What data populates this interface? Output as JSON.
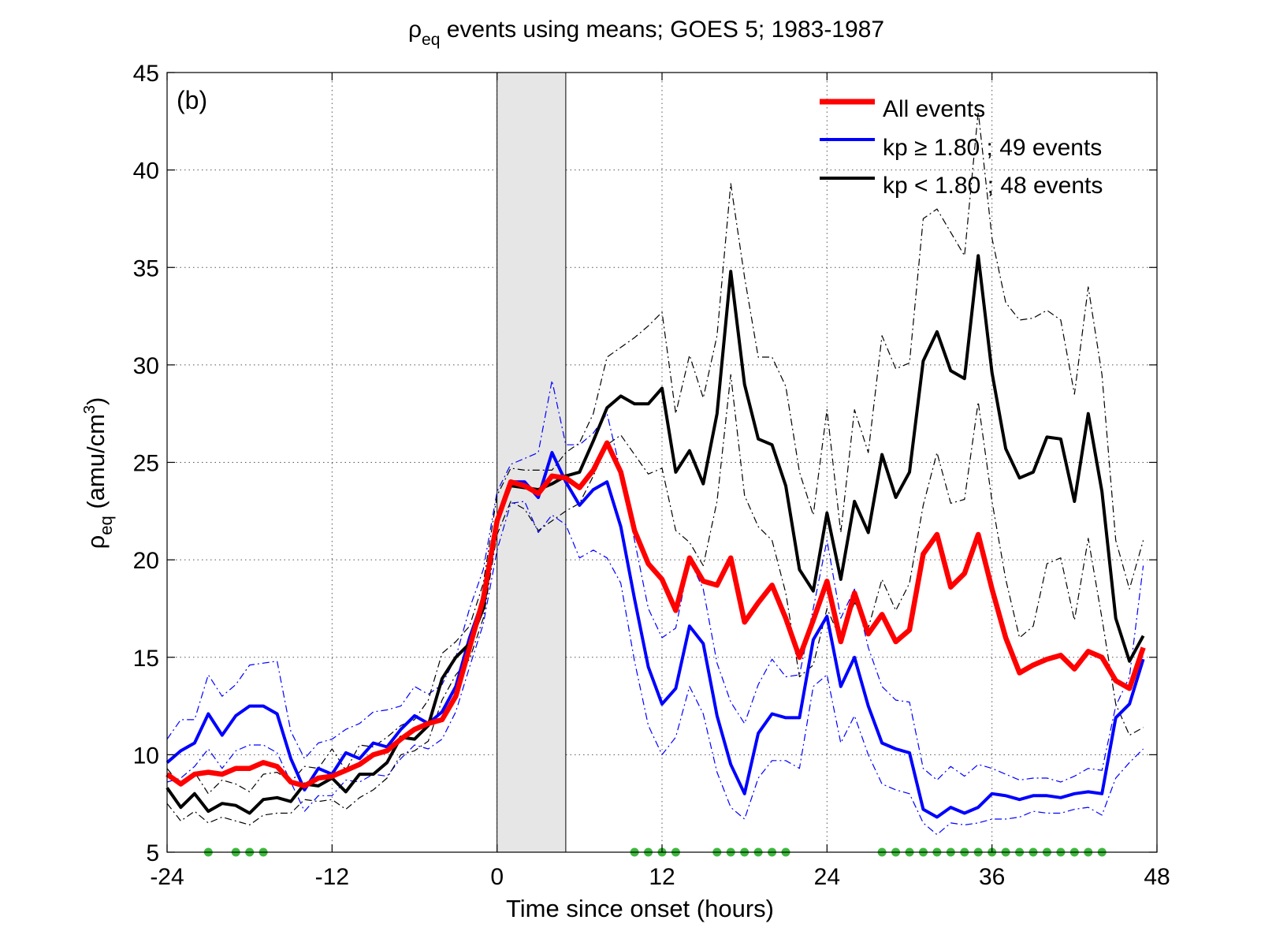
{
  "chart_data": {
    "type": "line",
    "title": "ρ",
    "title_sub": "eq",
    "title_rest": " events using means; GOES 5; 1983-1987",
    "panel_label": "(b)",
    "xlabel": "Time since onset (hours)",
    "ylabel_main": "ρ",
    "ylabel_sub": "eq",
    "ylabel_rest": " (amu/cm",
    "ylabel_sup": "3",
    "ylabel_close": ")",
    "xlim": [
      -24,
      48
    ],
    "ylim": [
      5,
      45
    ],
    "xticks": [
      -24,
      -12,
      0,
      12,
      24,
      36,
      48
    ],
    "yticks": [
      5,
      10,
      15,
      20,
      25,
      30,
      35,
      40,
      45
    ],
    "grid": true,
    "legend_position": "top-right",
    "shaded_region": [
      0,
      5
    ],
    "x": [
      -24,
      -23,
      -22,
      -21,
      -20,
      -19,
      -18,
      -17,
      -16,
      -15,
      -14,
      -13,
      -12,
      -11,
      -10,
      -9,
      -8,
      -7,
      -6,
      -5,
      -4,
      -3,
      -2,
      -1,
      0,
      1,
      2,
      3,
      4,
      5,
      6,
      7,
      8,
      9,
      10,
      11,
      12,
      13,
      14,
      15,
      16,
      17,
      18,
      19,
      20,
      21,
      22,
      23,
      24,
      25,
      26,
      27,
      28,
      29,
      30,
      31,
      32,
      33,
      34,
      35,
      36,
      37,
      38,
      39,
      40,
      41,
      42,
      43,
      44,
      45,
      46,
      47
    ],
    "series": [
      {
        "name": "All events",
        "color": "#ff0000",
        "values": [
          9.0,
          8.5,
          9.0,
          9.1,
          9.0,
          9.3,
          9.3,
          9.6,
          9.4,
          8.6,
          8.4,
          8.8,
          8.9,
          9.2,
          9.5,
          10.0,
          10.2,
          10.8,
          11.3,
          11.6,
          11.8,
          13.0,
          15.5,
          18.0,
          22.0,
          24.0,
          23.8,
          23.4,
          24.3,
          24.2,
          23.7,
          24.6,
          26.0,
          24.5,
          21.5,
          19.8,
          19.0,
          17.4,
          20.1,
          18.9,
          18.7,
          20.1,
          16.8,
          17.8,
          18.7,
          17.0,
          15.0,
          16.9,
          18.9,
          15.8,
          18.3,
          16.2,
          17.2,
          15.8,
          16.4,
          20.3,
          21.3,
          18.6,
          19.3,
          21.3,
          18.5,
          16.0,
          14.2,
          14.6,
          14.9,
          15.1,
          14.4,
          15.3,
          15.0,
          13.8,
          13.4,
          15.5
        ]
      },
      {
        "name": "kp ≥ 1.80 ; 49 events",
        "color": "#0000ff",
        "values": [
          9.6,
          10.2,
          10.6,
          12.1,
          11.0,
          12.0,
          12.5,
          12.5,
          12.1,
          9.8,
          8.2,
          9.3,
          9.0,
          10.1,
          9.8,
          10.6,
          10.4,
          11.3,
          12.0,
          11.6,
          12.2,
          13.5,
          16.0,
          18.0,
          22.0,
          24.0,
          24.0,
          23.2,
          25.5,
          24.0,
          22.8,
          23.6,
          24.0,
          21.7,
          18.0,
          14.5,
          12.6,
          13.4,
          16.6,
          15.7,
          12.0,
          9.5,
          8.0,
          11.1,
          12.1,
          11.9,
          11.9,
          15.9,
          17.1,
          13.5,
          15.0,
          12.5,
          10.6,
          10.3,
          10.1,
          7.2,
          6.8,
          7.3,
          7.0,
          7.3,
          8.0,
          7.9,
          7.7,
          7.9,
          7.9,
          7.8,
          8.0,
          8.1,
          8.0,
          11.9,
          12.6,
          14.9
        ]
      },
      {
        "name": "kp < 1.80 ; 48 events",
        "color": "#000000",
        "values": [
          8.3,
          7.3,
          8.0,
          7.1,
          7.5,
          7.4,
          7.0,
          7.7,
          7.8,
          7.6,
          8.5,
          8.4,
          8.8,
          8.1,
          9.0,
          9.0,
          9.6,
          10.9,
          10.8,
          11.5,
          13.9,
          15.0,
          15.7,
          17.5,
          22.0,
          23.8,
          23.7,
          23.6,
          23.9,
          24.3,
          24.5,
          26.1,
          27.8,
          28.4,
          28.0,
          28.0,
          28.8,
          24.5,
          25.6,
          23.9,
          27.5,
          34.8,
          29.0,
          26.2,
          25.9,
          23.8,
          19.5,
          18.4,
          22.4,
          19.0,
          23.0,
          21.4,
          25.4,
          23.2,
          24.5,
          30.2,
          31.7,
          29.7,
          29.3,
          35.6,
          29.6,
          25.7,
          24.2,
          24.5,
          26.3,
          26.2,
          23.0,
          27.5,
          23.5,
          17.0,
          14.8,
          16.1
        ]
      },
      {
        "name": "blue upper bound",
        "color": "#0000ff",
        "dashed": true,
        "values": [
          10.8,
          11.8,
          11.8,
          14.1,
          13.0,
          13.6,
          14.6,
          14.7,
          14.8,
          11.2,
          9.8,
          10.6,
          10.8,
          11.3,
          11.6,
          12.2,
          12.3,
          12.5,
          13.5,
          13.1,
          13.6,
          15.0,
          17.5,
          19.5,
          23.5,
          24.9,
          25.2,
          25.5,
          29.2,
          25.9,
          25.9,
          26.5,
          27.5,
          24.5,
          21.0,
          17.5,
          16.0,
          16.5,
          20.0,
          18.5,
          14.7,
          12.7,
          11.6,
          13.6,
          14.9,
          14.0,
          14.1,
          17.5,
          21.0,
          17.0,
          18.5,
          15.5,
          13.5,
          12.8,
          12.7,
          9.3,
          8.7,
          9.4,
          8.9,
          9.5,
          9.3,
          9.0,
          8.7,
          8.8,
          8.8,
          8.6,
          8.9,
          9.3,
          9.2,
          12.5,
          14.0,
          19.7
        ]
      },
      {
        "name": "blue lower bound",
        "color": "#0000ff",
        "dashed": true,
        "values": [
          8.6,
          8.8,
          9.4,
          10.3,
          9.3,
          10.2,
          10.5,
          10.5,
          10.1,
          8.6,
          7.1,
          7.9,
          7.9,
          8.7,
          8.6,
          9.0,
          8.9,
          9.8,
          10.5,
          10.3,
          10.8,
          12.2,
          14.5,
          16.7,
          20.5,
          22.9,
          23.0,
          21.4,
          22.3,
          21.8,
          20.1,
          20.5,
          20.1,
          18.8,
          14.8,
          11.5,
          10.0,
          10.9,
          13.5,
          12.1,
          9.1,
          7.3,
          6.7,
          8.8,
          9.7,
          9.7,
          9.3,
          13.5,
          14.1,
          10.6,
          12.0,
          10.0,
          8.5,
          8.2,
          8.0,
          6.5,
          5.9,
          6.5,
          6.4,
          6.5,
          6.7,
          6.7,
          6.8,
          7.1,
          7.0,
          7.0,
          7.2,
          7.3,
          6.9,
          8.8,
          9.6,
          10.3
        ]
      },
      {
        "name": "black upper bound",
        "color": "#000000",
        "dashed": true,
        "values": [
          9.3,
          8.4,
          9.1,
          8.0,
          8.7,
          8.5,
          8.1,
          9.0,
          9.1,
          8.6,
          9.4,
          9.3,
          10.3,
          9.2,
          10.5,
          10.4,
          10.9,
          11.5,
          11.8,
          12.8,
          15.2,
          15.8,
          16.6,
          18.8,
          23.3,
          24.7,
          24.6,
          24.6,
          24.6,
          25.5,
          26.0,
          27.5,
          30.4,
          30.9,
          31.4,
          32.0,
          32.7,
          27.5,
          30.5,
          28.3,
          31.5,
          39.3,
          34.5,
          30.4,
          30.4,
          28.9,
          24.5,
          22.3,
          27.7,
          21.4,
          27.7,
          25.5,
          31.5,
          29.8,
          30.1,
          37.5,
          38.0,
          36.8,
          35.6,
          43.0,
          36.5,
          33.2,
          32.3,
          32.4,
          32.8,
          32.3,
          28.5,
          34.0,
          29.5,
          21.0,
          18.5,
          21.0
        ]
      },
      {
        "name": "black lower bound",
        "color": "#000000",
        "dashed": true,
        "values": [
          7.5,
          6.6,
          7.1,
          6.5,
          6.8,
          6.6,
          6.4,
          6.9,
          7.0,
          7.0,
          7.7,
          7.6,
          7.7,
          7.2,
          7.8,
          8.2,
          8.8,
          10.0,
          10.2,
          10.7,
          12.8,
          14.1,
          14.9,
          17.0,
          21.3,
          23.0,
          22.6,
          21.5,
          22.0,
          22.5,
          22.9,
          24.3,
          25.9,
          26.4,
          25.4,
          24.4,
          24.7,
          21.5,
          20.9,
          19.7,
          23.0,
          29.5,
          23.3,
          21.7,
          21.0,
          18.3,
          14.0,
          14.6,
          17.5,
          15.9,
          17.8,
          16.5,
          19.0,
          17.4,
          18.8,
          22.8,
          25.5,
          22.9,
          23.1,
          28.1,
          23.0,
          19.0,
          16.0,
          16.6,
          19.8,
          20.1,
          16.9,
          21.1,
          17.0,
          12.6,
          11.0,
          11.4
        ]
      }
    ],
    "marker_color": "#3cb83c",
    "marker_y": 5,
    "markers_x": [
      -21,
      -19,
      -18,
      -17,
      10,
      11,
      12,
      13,
      16,
      17,
      18,
      19,
      20,
      21,
      28,
      29,
      30,
      31,
      32,
      33,
      34,
      35,
      36,
      37,
      38,
      39,
      40,
      41,
      42,
      43,
      44
    ]
  }
}
